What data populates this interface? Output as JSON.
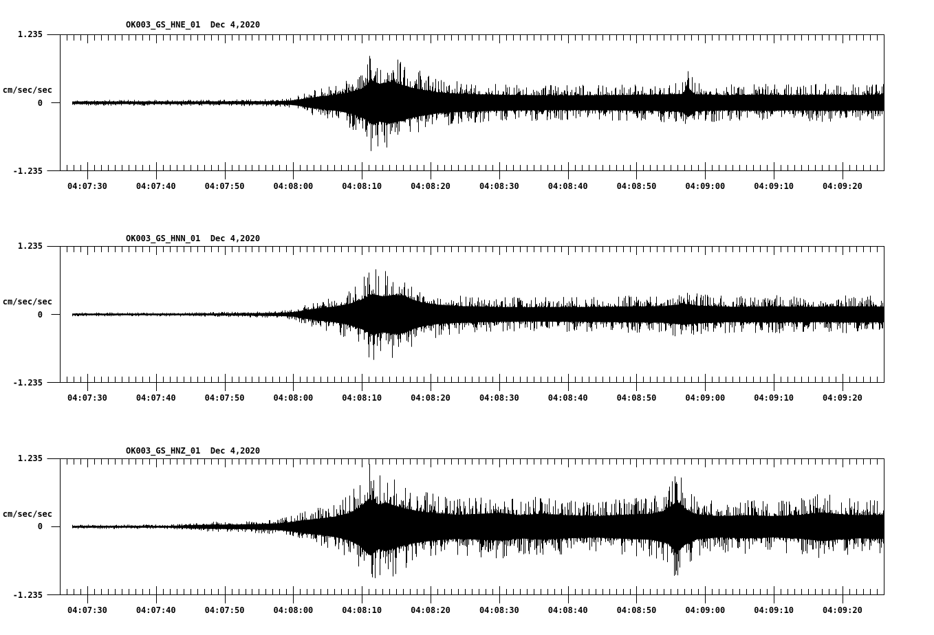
{
  "page": {
    "background_color": "#ffffff",
    "trace_color": "#000000"
  },
  "y_axis": {
    "max_label": "1.235",
    "zero_label": "0",
    "min_label": "-1.235",
    "unit_label": "cm/sec/sec"
  },
  "x_axis": {
    "tick_labels": [
      "04:07:30",
      "04:07:40",
      "04:07:50",
      "04:08:00",
      "04:08:10",
      "04:08:20",
      "04:08:30",
      "04:08:40",
      "04:08:50",
      "04:09:00",
      "04:09:10",
      "04:09:20"
    ],
    "major_interval_seconds": 10,
    "minor_interval_seconds": 1,
    "axis_start_time": "04:07:26",
    "axis_end_time": "04:09:26"
  },
  "chart_data": [
    {
      "type": "line",
      "subtype": "seismogram",
      "title": "OK003_GS_HNE_01  Dec 4,2020",
      "channel": "HNE",
      "date": "Dec 4,2020",
      "ylabel": "cm/sec/sec",
      "ylim": [
        -1.235,
        1.235
      ],
      "ytick_values": [
        1.235,
        0,
        -1.235
      ],
      "x_tick_labels": [
        "04:07:30",
        "04:07:40",
        "04:07:50",
        "04:08:00",
        "04:08:10",
        "04:08:20",
        "04:08:30",
        "04:08:40",
        "04:08:50",
        "04:09:00",
        "04:09:10",
        "04:09:20"
      ],
      "x_range_seconds": 120.1,
      "trace_start_offset_seconds": 1.8,
      "event_onset": "04:08:00",
      "peak_time": "04:08:11",
      "amplitude_envelope_t_amp": [
        [
          1.8,
          0.055
        ],
        [
          18,
          0.055
        ],
        [
          26,
          0.06
        ],
        [
          31,
          0.065
        ],
        [
          33,
          0.08
        ],
        [
          34.5,
          0.12
        ],
        [
          36,
          0.2
        ],
        [
          38,
          0.28
        ],
        [
          40,
          0.34
        ],
        [
          42,
          0.44
        ],
        [
          44,
          0.62
        ],
        [
          45.5,
          0.95
        ],
        [
          46.5,
          0.82
        ],
        [
          48,
          0.9
        ],
        [
          49.5,
          0.8
        ],
        [
          51,
          0.66
        ],
        [
          53,
          0.55
        ],
        [
          55,
          0.45
        ],
        [
          57.5,
          0.4
        ],
        [
          60,
          0.37
        ],
        [
          65,
          0.34
        ],
        [
          72,
          0.32
        ],
        [
          80,
          0.33
        ],
        [
          86,
          0.35
        ],
        [
          90.5,
          0.38
        ],
        [
          91.5,
          0.62
        ],
        [
          92.5,
          0.37
        ],
        [
          97,
          0.33
        ],
        [
          102,
          0.35
        ],
        [
          107,
          0.33
        ],
        [
          112,
          0.35
        ],
        [
          116,
          0.33
        ],
        [
          120.2,
          0.36
        ]
      ]
    },
    {
      "type": "line",
      "subtype": "seismogram",
      "title": "OK003_GS_HNN_01  Dec 4,2020",
      "channel": "HNN",
      "date": "Dec 4,2020",
      "ylabel": "cm/sec/sec",
      "ylim": [
        -1.235,
        1.235
      ],
      "ytick_values": [
        1.235,
        0,
        -1.235
      ],
      "x_tick_labels": [
        "04:07:30",
        "04:07:40",
        "04:07:50",
        "04:08:00",
        "04:08:10",
        "04:08:20",
        "04:08:30",
        "04:08:40",
        "04:08:50",
        "04:09:00",
        "04:09:10",
        "04:09:20"
      ],
      "x_range_seconds": 120.1,
      "trace_start_offset_seconds": 1.8,
      "event_onset": "04:08:00",
      "peak_time": "04:08:11",
      "amplitude_envelope_t_amp": [
        [
          1.8,
          0.035
        ],
        [
          14,
          0.035
        ],
        [
          20,
          0.04
        ],
        [
          26,
          0.05
        ],
        [
          30,
          0.06
        ],
        [
          32,
          0.07
        ],
        [
          34,
          0.1
        ],
        [
          36,
          0.2
        ],
        [
          38,
          0.28
        ],
        [
          40,
          0.34
        ],
        [
          42,
          0.45
        ],
        [
          44,
          0.65
        ],
        [
          45.5,
          0.88
        ],
        [
          47,
          0.78
        ],
        [
          48.5,
          0.84
        ],
        [
          50,
          0.82
        ],
        [
          51.5,
          0.62
        ],
        [
          53,
          0.5
        ],
        [
          55,
          0.42
        ],
        [
          58,
          0.36
        ],
        [
          62,
          0.33
        ],
        [
          68,
          0.31
        ],
        [
          75,
          0.32
        ],
        [
          82,
          0.34
        ],
        [
          88,
          0.36
        ],
        [
          91,
          0.45
        ],
        [
          93,
          0.38
        ],
        [
          98,
          0.33
        ],
        [
          104,
          0.35
        ],
        [
          110,
          0.33
        ],
        [
          115,
          0.35
        ],
        [
          120.2,
          0.34
        ]
      ]
    },
    {
      "type": "line",
      "subtype": "seismogram",
      "title": "OK003_GS_HNZ_01  Dec 4,2020",
      "channel": "HNZ",
      "date": "Dec 4,2020",
      "ylabel": "cm/sec/sec",
      "ylim": [
        -1.235,
        1.235
      ],
      "ytick_values": [
        1.235,
        0,
        -1.235
      ],
      "x_tick_labels": [
        "04:07:30",
        "04:07:40",
        "04:07:50",
        "04:08:00",
        "04:08:10",
        "04:08:20",
        "04:08:30",
        "04:08:40",
        "04:08:50",
        "04:09:00",
        "04:09:10",
        "04:09:20"
      ],
      "x_range_seconds": 120.1,
      "trace_start_offset_seconds": 1.8,
      "event_onset": "04:08:00",
      "peak_time": "04:08:11",
      "amplitude_envelope_t_amp": [
        [
          1.8,
          0.04
        ],
        [
          16,
          0.04
        ],
        [
          19,
          0.07
        ],
        [
          22,
          0.09
        ],
        [
          26,
          0.1
        ],
        [
          29,
          0.12
        ],
        [
          32,
          0.15
        ],
        [
          34,
          0.22
        ],
        [
          36,
          0.3
        ],
        [
          38,
          0.36
        ],
        [
          40,
          0.44
        ],
        [
          42,
          0.58
        ],
        [
          43.5,
          0.8
        ],
        [
          45,
          1.22
        ],
        [
          46.5,
          0.95
        ],
        [
          47.5,
          1.05
        ],
        [
          49,
          0.88
        ],
        [
          51,
          0.74
        ],
        [
          53,
          0.64
        ],
        [
          55,
          0.58
        ],
        [
          58,
          0.52
        ],
        [
          61,
          0.56
        ],
        [
          64,
          0.6
        ],
        [
          67,
          0.5
        ],
        [
          70,
          0.56
        ],
        [
          74,
          0.5
        ],
        [
          78,
          0.46
        ],
        [
          82,
          0.52
        ],
        [
          86,
          0.56
        ],
        [
          88.5,
          0.72
        ],
        [
          89.8,
          1.12
        ],
        [
          91,
          0.78
        ],
        [
          92.5,
          0.55
        ],
        [
          96,
          0.46
        ],
        [
          100,
          0.5
        ],
        [
          104,
          0.46
        ],
        [
          108,
          0.52
        ],
        [
          111,
          0.62
        ],
        [
          113,
          0.56
        ],
        [
          116,
          0.5
        ],
        [
          120.2,
          0.52
        ]
      ]
    }
  ]
}
